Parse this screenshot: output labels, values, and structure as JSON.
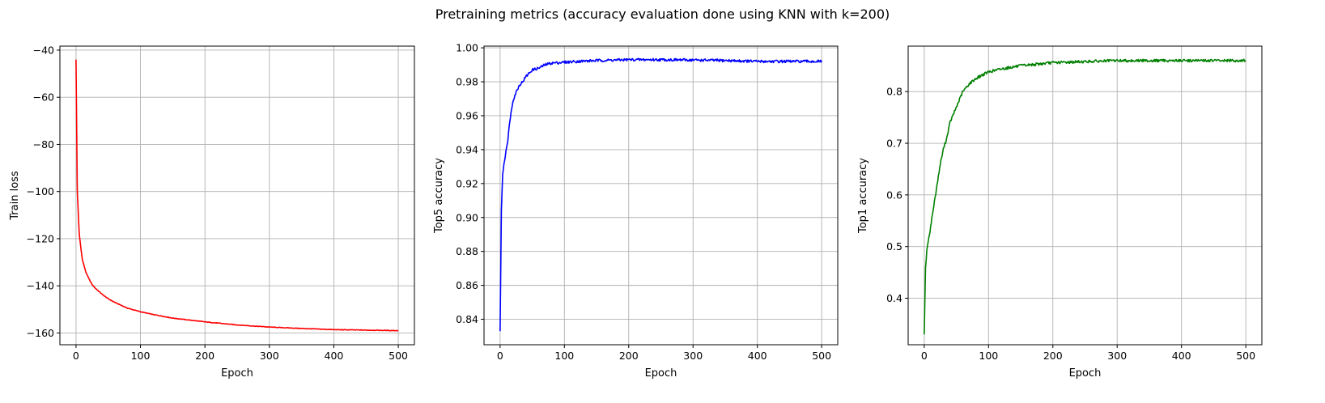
{
  "title": "Pretraining metrics (accuracy evaluation done using KNN with k=200)",
  "colors": {
    "loss": "#ff0000",
    "top5": "#0000ff",
    "top1": "#008000",
    "grid": "#b0b0b0"
  },
  "chart_data": [
    {
      "type": "line",
      "xlabel": "Epoch",
      "ylabel": "Train loss",
      "xlim": [
        -25,
        525
      ],
      "ylim": [
        -165,
        -38.3
      ],
      "xticks": [
        0,
        100,
        200,
        300,
        400,
        500
      ],
      "yticks": [
        -160,
        -140,
        -120,
        -100,
        -80,
        -60,
        -40
      ],
      "ytick_labels": [
        "−160",
        "−140",
        "−120",
        "−100",
        "−80",
        "−60",
        "−40"
      ],
      "grid": true,
      "series": [
        {
          "color": "#ff0000",
          "x": [
            0,
            2,
            5,
            8,
            10,
            15,
            20,
            25,
            30,
            40,
            50,
            60,
            80,
            100,
            120,
            150,
            200,
            250,
            300,
            350,
            400,
            450,
            500
          ],
          "y": [
            -44,
            -100,
            -118,
            -125,
            -129,
            -134,
            -137,
            -139.5,
            -141,
            -143.5,
            -145.5,
            -147,
            -149.5,
            -151,
            -152.2,
            -153.7,
            -155.3,
            -156.6,
            -157.5,
            -158.1,
            -158.6,
            -158.8,
            -159
          ]
        }
      ]
    },
    {
      "type": "line",
      "xlabel": "Epoch",
      "ylabel": "Top5 accuracy",
      "xlim": [
        -25,
        525
      ],
      "ylim": [
        0.825,
        1.001
      ],
      "xticks": [
        0,
        100,
        200,
        300,
        400,
        500
      ],
      "yticks": [
        0.84,
        0.86,
        0.88,
        0.9,
        0.92,
        0.94,
        0.96,
        0.98,
        1.0
      ],
      "ytick_labels": [
        "0.84",
        "0.86",
        "0.88",
        "0.90",
        "0.92",
        "0.94",
        "0.96",
        "0.98",
        "1.00"
      ],
      "grid": true,
      "series": [
        {
          "color": "#0000ff",
          "x": [
            0,
            2,
            4,
            6,
            8,
            10,
            12,
            15,
            18,
            20,
            25,
            30,
            35,
            40,
            45,
            50,
            60,
            70,
            80,
            100,
            120,
            150,
            200,
            250,
            300,
            350,
            400,
            450,
            500
          ],
          "y": [
            0.833,
            0.905,
            0.925,
            0.932,
            0.936,
            0.942,
            0.945,
            0.957,
            0.964,
            0.969,
            0.974,
            0.978,
            0.98,
            0.983,
            0.985,
            0.987,
            0.988,
            0.99,
            0.991,
            0.9915,
            0.992,
            0.9925,
            0.993,
            0.993,
            0.9928,
            0.9925,
            0.992,
            0.992,
            0.992
          ]
        }
      ]
    },
    {
      "type": "line",
      "xlabel": "Epoch",
      "ylabel": "Top1 accuracy",
      "xlim": [
        -25,
        525
      ],
      "ylim": [
        0.31,
        0.888
      ],
      "xticks": [
        0,
        100,
        200,
        300,
        400,
        500
      ],
      "yticks": [
        0.4,
        0.5,
        0.6,
        0.7,
        0.8
      ],
      "ytick_labels": [
        "0.4",
        "0.5",
        "0.6",
        "0.7",
        "0.8"
      ],
      "grid": true,
      "series": [
        {
          "color": "#008000",
          "x": [
            0,
            2,
            4,
            6,
            8,
            10,
            15,
            20,
            25,
            30,
            35,
            40,
            50,
            60,
            70,
            80,
            90,
            100,
            120,
            150,
            200,
            250,
            300,
            350,
            400,
            450,
            500
          ],
          "y": [
            0.33,
            0.46,
            0.49,
            0.51,
            0.52,
            0.54,
            0.58,
            0.62,
            0.66,
            0.69,
            0.71,
            0.74,
            0.77,
            0.8,
            0.815,
            0.825,
            0.832,
            0.838,
            0.844,
            0.85,
            0.856,
            0.858,
            0.86,
            0.86,
            0.86,
            0.86,
            0.86
          ]
        }
      ]
    }
  ]
}
